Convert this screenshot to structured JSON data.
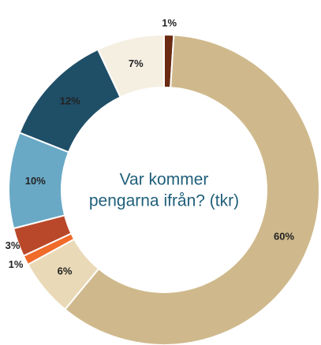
{
  "chart_data": {
    "type": "donut",
    "title": [
      "Var kommer",
      "pengarna ifrån? (tkr)"
    ],
    "values": [
      1,
      60,
      6,
      1,
      3,
      10,
      12,
      7
    ],
    "value_labels": [
      "1%",
      "60%",
      "6%",
      "1%",
      "3%",
      "10%",
      "12%",
      "7%"
    ],
    "colors": [
      "#6b2a12",
      "#cfb98c",
      "#e9d9b6",
      "#f06a2a",
      "#b9482a",
      "#69a9c6",
      "#1f4e67",
      "#f5efe2"
    ]
  }
}
